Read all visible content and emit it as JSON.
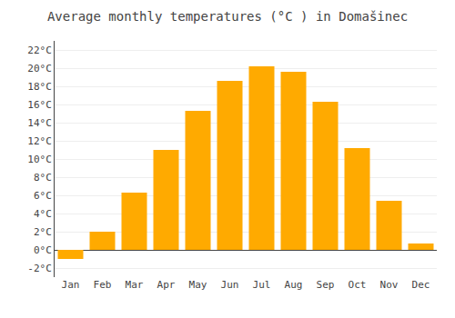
{
  "chart_data": {
    "type": "bar",
    "title": "Average monthly temperatures (°C ) in Domašinec",
    "categories": [
      "Jan",
      "Feb",
      "Mar",
      "Apr",
      "May",
      "Jun",
      "Jul",
      "Aug",
      "Sep",
      "Oct",
      "Nov",
      "Dec"
    ],
    "values": [
      -1.0,
      2.0,
      6.3,
      11.0,
      15.3,
      18.6,
      20.2,
      19.6,
      16.3,
      11.2,
      5.4,
      0.7
    ],
    "color": "#FFAA00",
    "ylim": [
      -3,
      23
    ],
    "yticks": [
      {
        "value": -2,
        "label": "-2°C"
      },
      {
        "value": 0,
        "label": "0°C"
      },
      {
        "value": 2,
        "label": "2°C"
      },
      {
        "value": 4,
        "label": "4°C"
      },
      {
        "value": 6,
        "label": "6°C"
      },
      {
        "value": 8,
        "label": "8°C"
      },
      {
        "value": 10,
        "label": "10°C"
      },
      {
        "value": 12,
        "label": "12°C"
      },
      {
        "value": 14,
        "label": "14°C"
      },
      {
        "value": 16,
        "label": "16°C"
      },
      {
        "value": 18,
        "label": "18°C"
      },
      {
        "value": 20,
        "label": "20°C"
      },
      {
        "value": 22,
        "label": "22°C"
      }
    ],
    "grid": true
  }
}
